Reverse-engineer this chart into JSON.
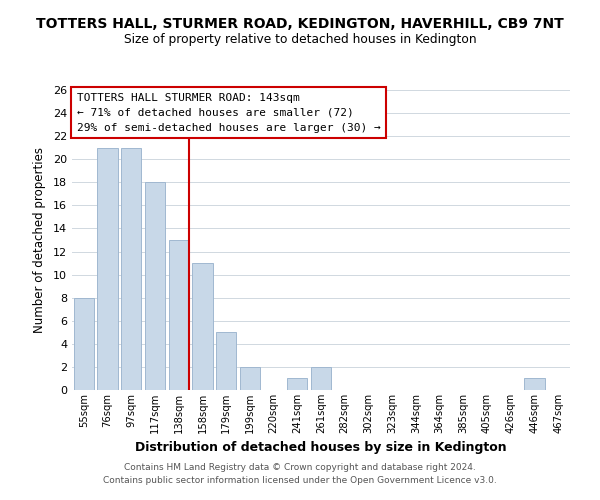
{
  "title": "TOTTERS HALL, STURMER ROAD, KEDINGTON, HAVERHILL, CB9 7NT",
  "subtitle": "Size of property relative to detached houses in Kedington",
  "xlabel": "Distribution of detached houses by size in Kedington",
  "ylabel": "Number of detached properties",
  "bar_color": "#c8d8e8",
  "bar_edge_color": "#a0b8d0",
  "categories": [
    "55sqm",
    "76sqm",
    "97sqm",
    "117sqm",
    "138sqm",
    "158sqm",
    "179sqm",
    "199sqm",
    "220sqm",
    "241sqm",
    "261sqm",
    "282sqm",
    "302sqm",
    "323sqm",
    "344sqm",
    "364sqm",
    "385sqm",
    "405sqm",
    "426sqm",
    "446sqm",
    "467sqm"
  ],
  "values": [
    8,
    21,
    21,
    18,
    13,
    11,
    5,
    2,
    0,
    1,
    2,
    0,
    0,
    0,
    0,
    0,
    0,
    0,
    0,
    1,
    0
  ],
  "ylim": [
    0,
    26
  ],
  "yticks": [
    0,
    2,
    4,
    6,
    8,
    10,
    12,
    14,
    16,
    18,
    20,
    22,
    24,
    26
  ],
  "vline_color": "#cc0000",
  "annotation_title": "TOTTERS HALL STURMER ROAD: 143sqm",
  "annotation_line1": "← 71% of detached houses are smaller (72)",
  "annotation_line2": "29% of semi-detached houses are larger (30) →",
  "footer1": "Contains HM Land Registry data © Crown copyright and database right 2024.",
  "footer2": "Contains public sector information licensed under the Open Government Licence v3.0.",
  "background_color": "#ffffff",
  "grid_color": "#d0d8e0"
}
